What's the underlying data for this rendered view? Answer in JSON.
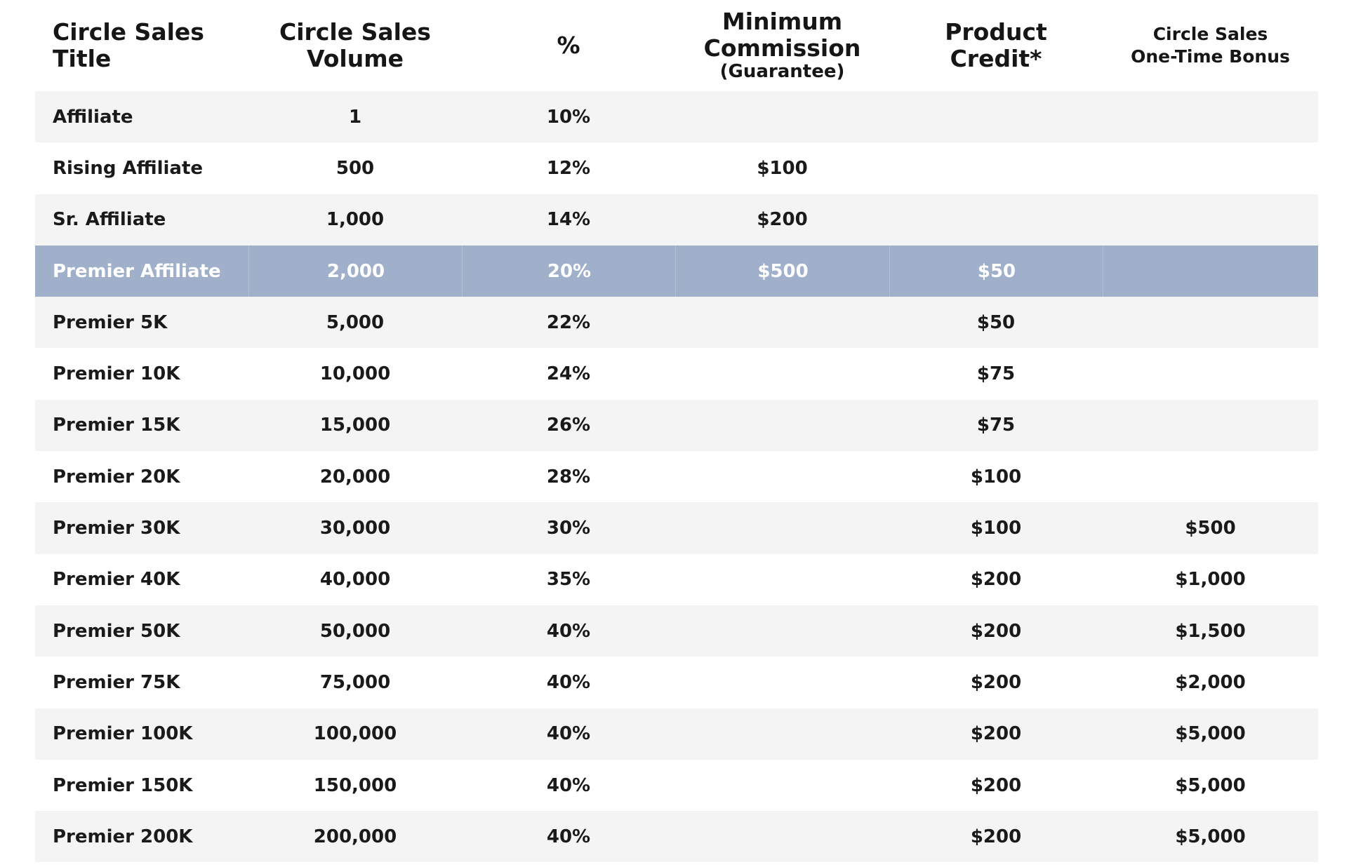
{
  "header": {
    "title_line1": "Circle Sales",
    "title_line2": "Title",
    "volume_line1": "Circle Sales",
    "volume_line2": "Volume",
    "percent": "%",
    "min_line1": "Minimum",
    "min_line2": "Commission",
    "min_line3": "(Guarantee)",
    "credit_line1": "Product",
    "credit_line2": "Credit*",
    "bonus_line1": "Circle Sales",
    "bonus_line2": "One-Time Bonus"
  },
  "highlight_color": "#a0b0ca",
  "rows": [
    {
      "title": "Affiliate",
      "volume": "1",
      "percent": "10%",
      "min_commission": "",
      "product_credit": "",
      "bonus": ""
    },
    {
      "title": "Rising Affiliate",
      "volume": "500",
      "percent": "12%",
      "min_commission": "$100",
      "product_credit": "",
      "bonus": ""
    },
    {
      "title": "Sr. Affiliate",
      "volume": "1,000",
      "percent": "14%",
      "min_commission": "$200",
      "product_credit": "",
      "bonus": ""
    },
    {
      "title": "Premier Affiliate",
      "volume": "2,000",
      "percent": "20%",
      "min_commission": "$500",
      "product_credit": "$50",
      "bonus": "",
      "highlighted": true
    },
    {
      "title": "Premier 5K",
      "volume": "5,000",
      "percent": "22%",
      "min_commission": "",
      "product_credit": "$50",
      "bonus": ""
    },
    {
      "title": "Premier 10K",
      "volume": "10,000",
      "percent": "24%",
      "min_commission": "",
      "product_credit": "$75",
      "bonus": ""
    },
    {
      "title": "Premier 15K",
      "volume": "15,000",
      "percent": "26%",
      "min_commission": "",
      "product_credit": "$75",
      "bonus": ""
    },
    {
      "title": "Premier 20K",
      "volume": "20,000",
      "percent": "28%",
      "min_commission": "",
      "product_credit": "$100",
      "bonus": ""
    },
    {
      "title": "Premier 30K",
      "volume": "30,000",
      "percent": "30%",
      "min_commission": "",
      "product_credit": "$100",
      "bonus": "$500"
    },
    {
      "title": "Premier 40K",
      "volume": "40,000",
      "percent": "35%",
      "min_commission": "",
      "product_credit": "$200",
      "bonus": "$1,000"
    },
    {
      "title": "Premier 50K",
      "volume": "50,000",
      "percent": "40%",
      "min_commission": "",
      "product_credit": "$200",
      "bonus": "$1,500"
    },
    {
      "title": "Premier 75K",
      "volume": "75,000",
      "percent": "40%",
      "min_commission": "",
      "product_credit": "$200",
      "bonus": "$2,000"
    },
    {
      "title": "Premier 100K",
      "volume": "100,000",
      "percent": "40%",
      "min_commission": "",
      "product_credit": "$200",
      "bonus": "$5,000"
    },
    {
      "title": "Premier 150K",
      "volume": "150,000",
      "percent": "40%",
      "min_commission": "",
      "product_credit": "$200",
      "bonus": "$5,000"
    },
    {
      "title": "Premier 200K",
      "volume": "200,000",
      "percent": "40%",
      "min_commission": "",
      "product_credit": "$200",
      "bonus": "$5,000"
    }
  ]
}
